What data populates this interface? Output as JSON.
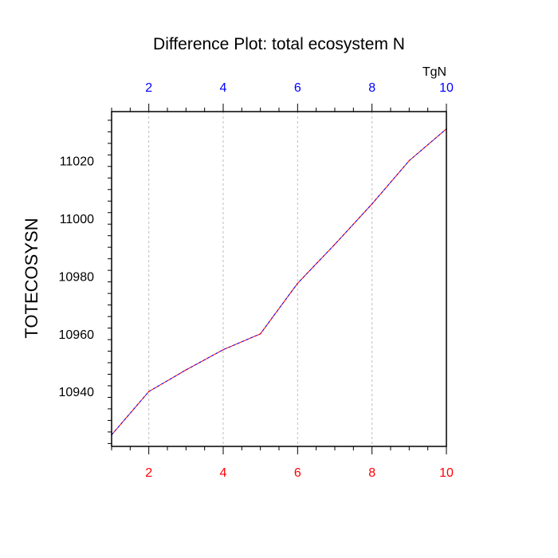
{
  "chart_data": {
    "type": "line",
    "title": "Difference Plot: total ecosystem N",
    "units": "TgN",
    "ylabel": "TOTECOSYSN",
    "xlabel": "",
    "xlim": [
      1,
      10
    ],
    "ylim": [
      10921,
      11037
    ],
    "x_ticks": [
      "2",
      "4",
      "6",
      "8",
      "10"
    ],
    "x_tick_values": [
      2,
      4,
      6,
      8,
      10
    ],
    "y_ticks": [
      "10940",
      "10960",
      "10980",
      "11000",
      "11020"
    ],
    "y_tick_values": [
      10940,
      10960,
      10980,
      11000,
      11020
    ],
    "grid": "vertical dashed",
    "bottom_tick_color": "#ff0000",
    "top_tick_color": "#0000ff",
    "series": [
      {
        "color": "#ff0000",
        "dash_color": "#0000ff",
        "x": [
          1,
          2,
          3,
          4,
          5,
          6,
          7,
          8,
          9,
          10
        ],
        "values": [
          10925,
          10940,
          10947.5,
          10954.5,
          10960,
          10977.5,
          10991,
          11005,
          11020,
          11031
        ]
      }
    ]
  }
}
